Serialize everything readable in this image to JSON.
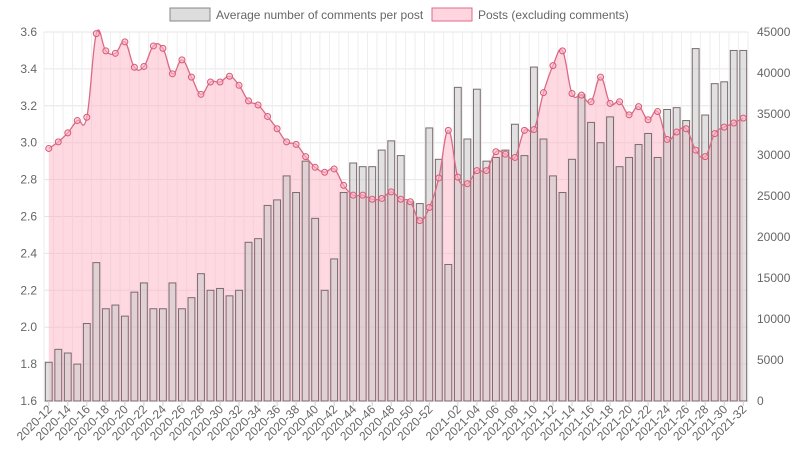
{
  "chart_data": {
    "type": "bar+line",
    "legend": {
      "position": "top",
      "items": [
        {
          "label": "Average number of comments per post",
          "color": "#dddddd",
          "border": "#888888"
        },
        {
          "label": "Posts (excluding comments)",
          "color": "#ffd6df",
          "border": "#e06888"
        }
      ]
    },
    "categories": [
      "2020-12",
      "2020-13",
      "2020-14",
      "2020-15",
      "2020-16",
      "2020-17",
      "2020-18",
      "2020-19",
      "2020-20",
      "2020-21",
      "2020-22",
      "2020-23",
      "2020-24",
      "2020-25",
      "2020-26",
      "2020-27",
      "2020-28",
      "2020-29",
      "2020-30",
      "2020-31",
      "2020-32",
      "2020-33",
      "2020-34",
      "2020-35",
      "2020-36",
      "2020-37",
      "2020-38",
      "2020-39",
      "2020-40",
      "2020-41",
      "2020-42",
      "2020-43",
      "2020-44",
      "2020-45",
      "2020-46",
      "2020-47",
      "2020-48",
      "2020-49",
      "2020-50",
      "2020-51",
      "2020-52",
      "2020-53",
      "2021-01",
      "2021-02",
      "2021-03",
      "2021-04",
      "2021-05",
      "2021-06",
      "2021-07",
      "2021-08",
      "2021-09",
      "2021-10",
      "2021-11",
      "2021-12",
      "2021-13",
      "2021-14",
      "2021-15",
      "2021-16",
      "2021-17",
      "2021-18",
      "2021-19",
      "2021-20",
      "2021-21",
      "2021-22",
      "2021-23",
      "2021-24",
      "2021-25",
      "2021-26",
      "2021-27",
      "2021-28",
      "2021-29",
      "2021-30",
      "2021-31",
      "2021-32"
    ],
    "x_tick_labels": [
      "2020-12",
      "2020-14",
      "2020-16",
      "2020-18",
      "2020-20",
      "2020-22",
      "2020-24",
      "2020-26",
      "2020-28",
      "2020-30",
      "2020-32",
      "2020-34",
      "2020-36",
      "2020-38",
      "2020-40",
      "2020-42",
      "2020-44",
      "2020-46",
      "2020-48",
      "2020-50",
      "2020-52",
      "2021-02",
      "2021-04",
      "2021-06",
      "2021-08",
      "2021-10",
      "2021-12",
      "2021-14",
      "2021-16",
      "2021-18",
      "2021-20",
      "2021-22",
      "2021-24",
      "2021-26",
      "2021-28",
      "2021-30",
      "2021-32"
    ],
    "y_left": {
      "min": 1.6,
      "max": 3.6,
      "ticks": [
        "1.6",
        "1.8",
        "2.0",
        "2.2",
        "2.4",
        "2.6",
        "2.8",
        "3.0",
        "3.2",
        "3.4",
        "3.6"
      ]
    },
    "y_right": {
      "min": 0,
      "max": 45000,
      "ticks": [
        "0",
        "5000",
        "10000",
        "15000",
        "20000",
        "25000",
        "30000",
        "35000",
        "40000",
        "45000"
      ]
    },
    "grid": true,
    "series": [
      {
        "name": "Average number of comments per post",
        "type": "bar",
        "axis": "left",
        "values": [
          1.81,
          1.88,
          1.86,
          1.8,
          2.02,
          2.35,
          2.1,
          2.12,
          2.06,
          2.19,
          2.24,
          2.1,
          2.1,
          2.24,
          2.1,
          2.16,
          2.29,
          2.2,
          2.21,
          2.17,
          2.2,
          2.46,
          2.48,
          2.66,
          2.69,
          2.82,
          2.73,
          2.9,
          2.59,
          2.2,
          2.37,
          2.73,
          2.89,
          2.87,
          2.87,
          2.96,
          3.01,
          2.93,
          2.68,
          2.67,
          3.08,
          2.91,
          2.34,
          3.3,
          3.02,
          3.29,
          2.9,
          2.92,
          2.96,
          3.1,
          2.93,
          3.41,
          3.02,
          2.82,
          2.73,
          2.91,
          3.26,
          3.11,
          3.0,
          3.14,
          2.87,
          2.92,
          2.99,
          3.05,
          2.92,
          3.18,
          3.19,
          3.12,
          3.51,
          3.15,
          3.32,
          3.33,
          3.5,
          3.5
        ]
      },
      {
        "name": "Posts (excluding comments)",
        "type": "line",
        "axis": "right",
        "values": [
          30800,
          31600,
          32700,
          34200,
          34600,
          44800,
          42700,
          42400,
          43800,
          40700,
          40800,
          43300,
          43000,
          39900,
          41600,
          39500,
          37400,
          38900,
          38900,
          39600,
          38500,
          36600,
          36100,
          34700,
          33200,
          31600,
          31300,
          29800,
          28500,
          27900,
          28300,
          26300,
          25100,
          25100,
          24600,
          24700,
          25500,
          24600,
          24300,
          22000,
          23600,
          27200,
          33000,
          27300,
          26500,
          28100,
          28100,
          30400,
          30100,
          29700,
          33000,
          33100,
          37600,
          40900,
          42700,
          37500,
          37300,
          36500,
          39500,
          36300,
          36500,
          34900,
          35900,
          34300,
          35300,
          31900,
          32800,
          33200,
          30600,
          29800,
          32600,
          33400,
          33900,
          34500
        ]
      }
    ]
  }
}
